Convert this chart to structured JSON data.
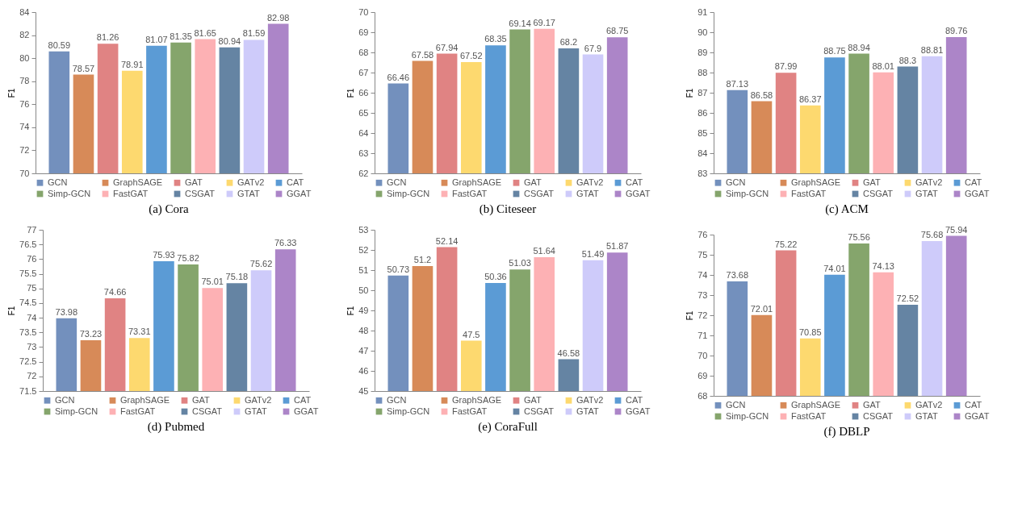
{
  "chart_data": [
    {
      "type": "bar",
      "title": "(a)  Cora",
      "ylabel": "F1",
      "categories": [
        null
      ],
      "ylim": [
        70,
        84
      ],
      "yticks": [
        70,
        72,
        74,
        76,
        78,
        80,
        82,
        84
      ],
      "data_labels": true,
      "legend": "bottom",
      "series": [
        {
          "name": "GCN",
          "color": "#7390bd",
          "values": [
            80.59
          ]
        },
        {
          "name": "GraphSAGE",
          "color": "#d78a58",
          "values": [
            78.57
          ]
        },
        {
          "name": "GAT",
          "color": "#e08383",
          "values": [
            81.26
          ]
        },
        {
          "name": "GATv2",
          "color": "#fdd96f",
          "values": [
            78.91
          ]
        },
        {
          "name": "CAT",
          "color": "#5b9bd5",
          "values": [
            81.07
          ]
        },
        {
          "name": "Simp-GCN",
          "color": "#85a56c",
          "values": [
            81.35
          ]
        },
        {
          "name": "FastGAT",
          "color": "#fdb1b4",
          "values": [
            81.65
          ]
        },
        {
          "name": "CSGAT",
          "color": "#6584a3",
          "values": [
            80.94
          ]
        },
        {
          "name": "GTAT",
          "color": "#cecbfa",
          "values": [
            81.59
          ]
        },
        {
          "name": "GGAT",
          "color": "#ac85c8",
          "values": [
            82.98
          ]
        }
      ]
    },
    {
      "type": "bar",
      "title": "(b)  Citeseer",
      "ylabel": "F1",
      "categories": [
        null
      ],
      "ylim": [
        62,
        70
      ],
      "yticks": [
        62,
        63,
        64,
        65,
        66,
        67,
        68,
        69,
        70
      ],
      "data_labels": true,
      "legend": "bottom",
      "series": [
        {
          "name": "GCN",
          "color": "#7390bd",
          "values": [
            66.46
          ]
        },
        {
          "name": "GraphSAGE",
          "color": "#d78a58",
          "values": [
            67.58
          ]
        },
        {
          "name": "GAT",
          "color": "#e08383",
          "values": [
            67.94
          ]
        },
        {
          "name": "GATv2",
          "color": "#fdd96f",
          "values": [
            67.52
          ]
        },
        {
          "name": "CAT",
          "color": "#5b9bd5",
          "values": [
            68.35
          ]
        },
        {
          "name": "Simp-GCN",
          "color": "#85a56c",
          "values": [
            69.14
          ]
        },
        {
          "name": "FastGAT",
          "color": "#fdb1b4",
          "values": [
            69.17
          ]
        },
        {
          "name": "CSGAT",
          "color": "#6584a3",
          "values": [
            68.2
          ]
        },
        {
          "name": "GTAT",
          "color": "#cecbfa",
          "values": [
            67.9
          ]
        },
        {
          "name": "GGAT",
          "color": "#ac85c8",
          "values": [
            68.75
          ]
        }
      ]
    },
    {
      "type": "bar",
      "title": "(c)  ACM",
      "ylabel": "F1",
      "categories": [
        null
      ],
      "ylim": [
        83,
        91
      ],
      "yticks": [
        83,
        84,
        85,
        86,
        87,
        88,
        89,
        90,
        91
      ],
      "data_labels": true,
      "legend": "bottom",
      "series": [
        {
          "name": "GCN",
          "color": "#7390bd",
          "values": [
            87.13
          ]
        },
        {
          "name": "GraphSAGE",
          "color": "#d78a58",
          "values": [
            86.58
          ]
        },
        {
          "name": "GAT",
          "color": "#e08383",
          "values": [
            87.99
          ]
        },
        {
          "name": "GATv2",
          "color": "#fdd96f",
          "values": [
            86.37
          ]
        },
        {
          "name": "CAT",
          "color": "#5b9bd5",
          "values": [
            88.75
          ]
        },
        {
          "name": "Simp-GCN",
          "color": "#85a56c",
          "values": [
            88.94
          ]
        },
        {
          "name": "FastGAT",
          "color": "#fdb1b4",
          "values": [
            88.01
          ]
        },
        {
          "name": "CSGAT",
          "color": "#6584a3",
          "values": [
            88.3
          ]
        },
        {
          "name": "GTAT",
          "color": "#cecbfa",
          "values": [
            88.81
          ]
        },
        {
          "name": "GGAT",
          "color": "#ac85c8",
          "values": [
            89.76
          ]
        }
      ]
    },
    {
      "type": "bar",
      "title": "(d)  Pubmed",
      "ylabel": "F1",
      "categories": [
        null
      ],
      "ylim": [
        71.5,
        77
      ],
      "yticks": [
        71.5,
        72,
        72.5,
        73,
        73.5,
        74,
        74.5,
        75,
        75.5,
        76,
        76.5,
        77
      ],
      "data_labels": true,
      "legend": "bottom",
      "series": [
        {
          "name": "GCN",
          "color": "#7390bd",
          "values": [
            73.98
          ]
        },
        {
          "name": "GraphSAGE",
          "color": "#d78a58",
          "values": [
            73.23
          ]
        },
        {
          "name": "GAT",
          "color": "#e08383",
          "values": [
            74.66
          ]
        },
        {
          "name": "GATv2",
          "color": "#fdd96f",
          "values": [
            73.31
          ]
        },
        {
          "name": "CAT",
          "color": "#5b9bd5",
          "values": [
            75.93
          ]
        },
        {
          "name": "Simp-GCN",
          "color": "#85a56c",
          "values": [
            75.82
          ]
        },
        {
          "name": "FastGAT",
          "color": "#fdb1b4",
          "values": [
            75.01
          ]
        },
        {
          "name": "CSGAT",
          "color": "#6584a3",
          "values": [
            75.18
          ]
        },
        {
          "name": "GTAT",
          "color": "#cecbfa",
          "values": [
            75.62
          ]
        },
        {
          "name": "GGAT",
          "color": "#ac85c8",
          "values": [
            76.33
          ]
        }
      ]
    },
    {
      "type": "bar",
      "title": "(e)  CoraFull",
      "ylabel": "F1",
      "categories": [
        null
      ],
      "ylim": [
        45,
        53
      ],
      "yticks": [
        45,
        46,
        47,
        48,
        49,
        50,
        51,
        52,
        53
      ],
      "data_labels": true,
      "legend": "bottom",
      "series": [
        {
          "name": "GCN",
          "color": "#7390bd",
          "values": [
            50.73
          ]
        },
        {
          "name": "GraphSAGE",
          "color": "#d78a58",
          "values": [
            51.2
          ]
        },
        {
          "name": "GAT",
          "color": "#e08383",
          "values": [
            52.14
          ]
        },
        {
          "name": "GATv2",
          "color": "#fdd96f",
          "values": [
            47.5
          ]
        },
        {
          "name": "CAT",
          "color": "#5b9bd5",
          "values": [
            50.36
          ]
        },
        {
          "name": "Simp-GCN",
          "color": "#85a56c",
          "values": [
            51.03
          ]
        },
        {
          "name": "FastGAT",
          "color": "#fdb1b4",
          "values": [
            51.64
          ]
        },
        {
          "name": "CSGAT",
          "color": "#6584a3",
          "values": [
            46.58
          ]
        },
        {
          "name": "GTAT",
          "color": "#cecbfa",
          "values": [
            51.49
          ]
        },
        {
          "name": "GGAT",
          "color": "#ac85c8",
          "values": [
            51.87
          ]
        }
      ]
    },
    {
      "type": "bar",
      "title": "(f)  DBLP",
      "ylabel": "F1",
      "categories": [
        null
      ],
      "ylim": [
        68,
        76
      ],
      "yticks": [
        68,
        69,
        70,
        71,
        72,
        73,
        74,
        75,
        76
      ],
      "data_labels": true,
      "legend": "bottom",
      "series": [
        {
          "name": "GCN",
          "color": "#7390bd",
          "values": [
            73.68
          ]
        },
        {
          "name": "GraphSAGE",
          "color": "#d78a58",
          "values": [
            72.01
          ]
        },
        {
          "name": "GAT",
          "color": "#e08383",
          "values": [
            75.22
          ]
        },
        {
          "name": "GATv2",
          "color": "#fdd96f",
          "values": [
            70.85
          ]
        },
        {
          "name": "CAT",
          "color": "#5b9bd5",
          "values": [
            74.01
          ]
        },
        {
          "name": "Simp-GCN",
          "color": "#85a56c",
          "values": [
            75.56
          ]
        },
        {
          "name": "FastGAT",
          "color": "#fdb1b4",
          "values": [
            74.13
          ]
        },
        {
          "name": "CSGAT",
          "color": "#6584a3",
          "values": [
            72.52
          ]
        },
        {
          "name": "GTAT",
          "color": "#cecbfa",
          "values": [
            75.68
          ]
        },
        {
          "name": "GGAT",
          "color": "#ac85c8",
          "values": [
            75.94
          ]
        }
      ]
    }
  ]
}
